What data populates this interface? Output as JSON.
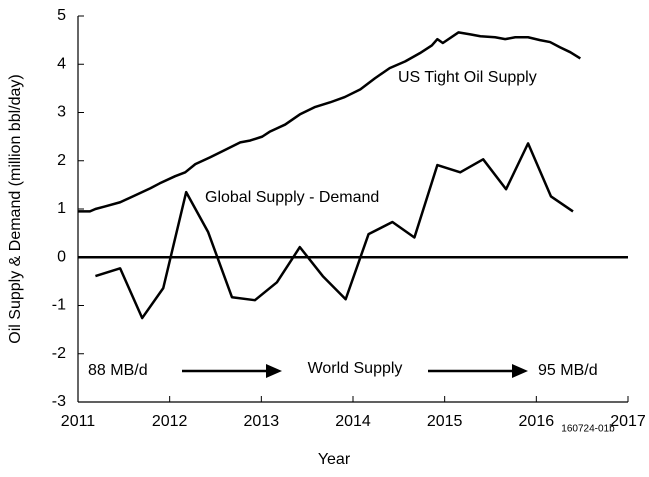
{
  "chart_data": {
    "type": "line",
    "xlabel": "Year",
    "ylabel": "Oil Supply & Demand (million bbl/day)",
    "xlim": [
      2011,
      2017
    ],
    "xticks": [
      2011,
      2012,
      2013,
      2014,
      2015,
      2016,
      2017
    ],
    "ylim": [
      -3,
      5
    ],
    "yticks": [
      -3,
      -2,
      -1,
      0,
      1,
      2,
      3,
      4,
      5
    ],
    "zero_line": true,
    "series": [
      {
        "name": "US Tight Oil Supply",
        "color": "#000000",
        "x": [
          2011.0,
          2011.13,
          2011.19,
          2011.29,
          2011.46,
          2011.62,
          2011.79,
          2011.89,
          2012.06,
          2012.17,
          2012.28,
          2012.44,
          2012.6,
          2012.77,
          2012.88,
          2013.01,
          2013.09,
          2013.26,
          2013.42,
          2013.58,
          2013.75,
          2013.91,
          2014.08,
          2014.24,
          2014.4,
          2014.57,
          2014.73,
          2014.86,
          2014.92,
          2014.98,
          2015.15,
          2015.28,
          2015.39,
          2015.55,
          2015.66,
          2015.77,
          2015.91,
          2016.04,
          2016.15,
          2016.26,
          2016.37,
          2016.48
        ],
        "values": [
          0.95,
          0.95,
          1.0,
          1.05,
          1.14,
          1.28,
          1.43,
          1.53,
          1.68,
          1.76,
          1.93,
          2.07,
          2.22,
          2.38,
          2.42,
          2.5,
          2.6,
          2.75,
          2.96,
          3.11,
          3.21,
          3.32,
          3.48,
          3.71,
          3.92,
          4.06,
          4.23,
          4.39,
          4.52,
          4.44,
          4.66,
          4.62,
          4.58,
          4.56,
          4.52,
          4.56,
          4.56,
          4.5,
          4.46,
          4.35,
          4.25,
          4.12
        ]
      },
      {
        "name": "Global Supply - Demand",
        "color": "#000000",
        "x": [
          2011.19,
          2011.46,
          2011.7,
          2011.93,
          2012.18,
          2012.42,
          2012.68,
          2012.93,
          2013.17,
          2013.42,
          2013.67,
          2013.92,
          2014.17,
          2014.43,
          2014.67,
          2014.92,
          2015.17,
          2015.42,
          2015.67,
          2015.91,
          2016.16,
          2016.4
        ],
        "values": [
          -0.39,
          -0.23,
          -1.26,
          -0.64,
          1.35,
          0.52,
          -0.83,
          -0.89,
          -0.52,
          0.21,
          -0.39,
          -0.87,
          0.48,
          0.73,
          0.41,
          1.91,
          1.76,
          2.03,
          1.41,
          2.36,
          1.26,
          0.95
        ]
      }
    ],
    "annotations": [
      "88 MB/d",
      "World Supply",
      "95 MB/d",
      "160724-01b"
    ]
  }
}
